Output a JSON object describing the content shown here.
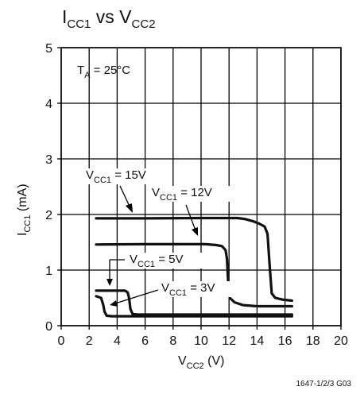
{
  "colors": {
    "series": "#111111",
    "grid": "#000000",
    "text": "#111111",
    "background": "#ffffff"
  },
  "chart_data": {
    "type": "line",
    "title": {
      "main": "I",
      "main_sub": "CC1",
      "mid": " vs V",
      "mid_sub": "CC2"
    },
    "xlabel": {
      "main": "V",
      "sub": "CC2",
      "rest": " (V)"
    },
    "ylabel": {
      "main": "I",
      "sub": "CC1",
      "rest": " (mA)"
    },
    "xlim": [
      0,
      20
    ],
    "ylim": [
      0,
      5
    ],
    "x_ticks": [
      "0",
      "2",
      "4",
      "6",
      "8",
      "10",
      "12",
      "14",
      "16",
      "18",
      "20"
    ],
    "y_ticks": [
      "0",
      "1",
      "2",
      "3",
      "4",
      "5"
    ],
    "grid": true,
    "condition": {
      "main": "T",
      "sub": "A",
      "rest": " = 25°C"
    },
    "footer_code": "1647-1/2/3 G03",
    "series": [
      {
        "name": "V_CC1 = 15V",
        "label": {
          "main": "V",
          "sub": "CC1",
          "rest": " = 15V"
        },
        "points": [
          [
            2.5,
            1.93
          ],
          [
            6,
            1.93
          ],
          [
            10,
            1.935
          ],
          [
            12.6,
            1.935
          ],
          [
            13.1,
            1.92
          ],
          [
            13.7,
            1.88
          ],
          [
            14.2,
            1.83
          ],
          [
            14.55,
            1.78
          ],
          [
            14.75,
            1.65
          ],
          [
            14.9,
            1.1
          ],
          [
            15.05,
            0.58
          ],
          [
            15.3,
            0.5
          ],
          [
            15.8,
            0.47
          ],
          [
            16.5,
            0.45
          ]
        ]
      },
      {
        "name": "V_CC1 = 12V",
        "label": {
          "main": "V",
          "sub": "CC1",
          "rest": " = 12V"
        },
        "points": [
          [
            2.5,
            1.46
          ],
          [
            6,
            1.465
          ],
          [
            10.3,
            1.465
          ],
          [
            11.1,
            1.45
          ],
          [
            11.5,
            1.43
          ],
          [
            11.75,
            1.36
          ],
          [
            11.85,
            1.2
          ],
          [
            11.93,
            0.8
          ],
          [
            12.05,
            0.5
          ],
          [
            12.4,
            0.42
          ],
          [
            13,
            0.37
          ],
          [
            14,
            0.35
          ],
          [
            16.5,
            0.35
          ]
        ]
      },
      {
        "name": "V_CC1 = 5V",
        "label": {
          "main": "V",
          "sub": "CC1",
          "rest": " = 5V"
        },
        "points": [
          [
            2.5,
            0.63
          ],
          [
            4.55,
            0.63
          ],
          [
            4.75,
            0.6
          ],
          [
            4.85,
            0.5
          ],
          [
            4.95,
            0.3
          ],
          [
            5.1,
            0.21
          ],
          [
            5.5,
            0.2
          ],
          [
            16.5,
            0.2
          ]
        ]
      },
      {
        "name": "V_CC1 = 3V",
        "label": {
          "main": "V",
          "sub": "CC1",
          "rest": " = 3V"
        },
        "points": [
          [
            2.5,
            0.53
          ],
          [
            2.85,
            0.5
          ],
          [
            3.0,
            0.38
          ],
          [
            3.1,
            0.25
          ],
          [
            3.25,
            0.18
          ],
          [
            3.6,
            0.17
          ],
          [
            16.5,
            0.17
          ]
        ]
      }
    ]
  }
}
